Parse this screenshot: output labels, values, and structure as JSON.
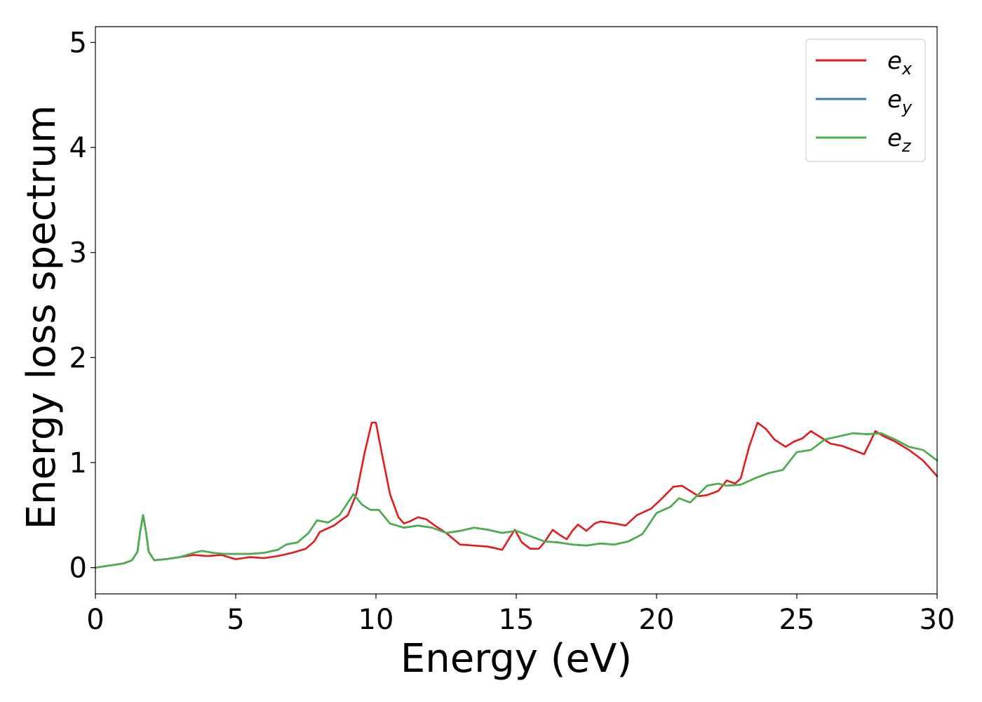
{
  "chart_data": {
    "type": "line",
    "xlabel": "Energy (eV)",
    "ylabel": "Energy loss spectrum",
    "xlim": [
      0,
      30
    ],
    "ylim": [
      -0.25,
      5.15
    ],
    "xticks": [
      0,
      5,
      10,
      15,
      20,
      25,
      30
    ],
    "xtick_labels": [
      "0",
      "5",
      "10",
      "15",
      "20",
      "25",
      "30"
    ],
    "yticks": [
      0,
      1,
      2,
      3,
      4,
      5
    ],
    "ytick_labels": [
      "0",
      "1",
      "2",
      "3",
      "4",
      "5"
    ],
    "grid": false,
    "legend_position": "top-right",
    "series": [
      {
        "name": "e_x",
        "label_base": "e",
        "label_sub": "x",
        "color": "#e41a1c",
        "points": [
          [
            0,
            0
          ],
          [
            0.5,
            0.02
          ],
          [
            1.0,
            0.04
          ],
          [
            1.3,
            0.07
          ],
          [
            1.5,
            0.15
          ],
          [
            1.6,
            0.35
          ],
          [
            1.7,
            0.5
          ],
          [
            1.8,
            0.35
          ],
          [
            1.9,
            0.15
          ],
          [
            2.1,
            0.07
          ],
          [
            2.5,
            0.08
          ],
          [
            3.0,
            0.1
          ],
          [
            3.5,
            0.12
          ],
          [
            4.0,
            0.11
          ],
          [
            4.5,
            0.12
          ],
          [
            5.0,
            0.08
          ],
          [
            5.5,
            0.1
          ],
          [
            6.0,
            0.09
          ],
          [
            6.5,
            0.11
          ],
          [
            7.0,
            0.14
          ],
          [
            7.5,
            0.18
          ],
          [
            7.8,
            0.25
          ],
          [
            8.0,
            0.34
          ],
          [
            8.5,
            0.4
          ],
          [
            8.8,
            0.46
          ],
          [
            9.0,
            0.5
          ],
          [
            9.3,
            0.7
          ],
          [
            9.6,
            1.1
          ],
          [
            9.85,
            1.38
          ],
          [
            10.0,
            1.38
          ],
          [
            10.2,
            1.1
          ],
          [
            10.5,
            0.7
          ],
          [
            10.8,
            0.48
          ],
          [
            11.0,
            0.42
          ],
          [
            11.2,
            0.44
          ],
          [
            11.5,
            0.48
          ],
          [
            11.8,
            0.46
          ],
          [
            12.1,
            0.4
          ],
          [
            12.5,
            0.33
          ],
          [
            13.0,
            0.22
          ],
          [
            13.5,
            0.21
          ],
          [
            14.0,
            0.2
          ],
          [
            14.5,
            0.17
          ],
          [
            14.8,
            0.3
          ],
          [
            14.95,
            0.36
          ],
          [
            15.2,
            0.24
          ],
          [
            15.5,
            0.18
          ],
          [
            15.8,
            0.18
          ],
          [
            16.0,
            0.24
          ],
          [
            16.3,
            0.36
          ],
          [
            16.5,
            0.32
          ],
          [
            16.8,
            0.27
          ],
          [
            17.0,
            0.35
          ],
          [
            17.2,
            0.41
          ],
          [
            17.5,
            0.35
          ],
          [
            17.8,
            0.42
          ],
          [
            18.0,
            0.44
          ],
          [
            18.5,
            0.42
          ],
          [
            18.9,
            0.4
          ],
          [
            19.3,
            0.5
          ],
          [
            19.8,
            0.56
          ],
          [
            20.2,
            0.66
          ],
          [
            20.6,
            0.77
          ],
          [
            20.9,
            0.78
          ],
          [
            21.2,
            0.73
          ],
          [
            21.5,
            0.68
          ],
          [
            21.8,
            0.69
          ],
          [
            22.2,
            0.73
          ],
          [
            22.5,
            0.83
          ],
          [
            22.8,
            0.8
          ],
          [
            23.0,
            0.85
          ],
          [
            23.3,
            1.15
          ],
          [
            23.6,
            1.38
          ],
          [
            23.9,
            1.32
          ],
          [
            24.2,
            1.22
          ],
          [
            24.6,
            1.15
          ],
          [
            24.9,
            1.2
          ],
          [
            25.2,
            1.23
          ],
          [
            25.5,
            1.3
          ],
          [
            25.8,
            1.25
          ],
          [
            26.2,
            1.18
          ],
          [
            26.6,
            1.16
          ],
          [
            27.0,
            1.12
          ],
          [
            27.4,
            1.08
          ],
          [
            27.8,
            1.3
          ],
          [
            28.1,
            1.25
          ],
          [
            28.5,
            1.2
          ],
          [
            29.0,
            1.12
          ],
          [
            29.5,
            1.02
          ],
          [
            30.0,
            0.87
          ]
        ]
      },
      {
        "name": "e_y",
        "label_base": "e",
        "label_sub": "y",
        "color": "#377eb8",
        "points": [
          [
            0,
            0
          ],
          [
            0.5,
            0.02
          ],
          [
            1.0,
            0.04
          ],
          [
            1.3,
            0.07
          ],
          [
            1.5,
            0.15
          ],
          [
            1.6,
            0.35
          ],
          [
            1.7,
            0.5
          ],
          [
            1.8,
            0.35
          ],
          [
            1.9,
            0.15
          ],
          [
            2.1,
            0.07
          ],
          [
            2.5,
            0.08
          ],
          [
            3.0,
            0.1
          ],
          [
            3.5,
            0.14
          ],
          [
            3.8,
            0.16
          ],
          [
            4.2,
            0.14
          ],
          [
            4.6,
            0.13
          ],
          [
            5.0,
            0.13
          ],
          [
            5.5,
            0.13
          ],
          [
            6.0,
            0.14
          ],
          [
            6.5,
            0.17
          ],
          [
            6.8,
            0.22
          ],
          [
            7.2,
            0.24
          ],
          [
            7.6,
            0.33
          ],
          [
            7.9,
            0.45
          ],
          [
            8.3,
            0.43
          ],
          [
            8.7,
            0.5
          ],
          [
            9.0,
            0.62
          ],
          [
            9.2,
            0.7
          ],
          [
            9.5,
            0.6
          ],
          [
            9.8,
            0.55
          ],
          [
            10.1,
            0.55
          ],
          [
            10.5,
            0.42
          ],
          [
            11.0,
            0.38
          ],
          [
            11.5,
            0.4
          ],
          [
            12.0,
            0.38
          ],
          [
            12.5,
            0.33
          ],
          [
            13.0,
            0.35
          ],
          [
            13.5,
            0.38
          ],
          [
            14.0,
            0.36
          ],
          [
            14.5,
            0.33
          ],
          [
            15.0,
            0.35
          ],
          [
            15.5,
            0.3
          ],
          [
            16.0,
            0.25
          ],
          [
            16.5,
            0.24
          ],
          [
            17.0,
            0.22
          ],
          [
            17.5,
            0.21
          ],
          [
            18.0,
            0.23
          ],
          [
            18.5,
            0.22
          ],
          [
            19.0,
            0.25
          ],
          [
            19.5,
            0.32
          ],
          [
            20.0,
            0.52
          ],
          [
            20.5,
            0.58
          ],
          [
            20.8,
            0.66
          ],
          [
            21.2,
            0.62
          ],
          [
            21.5,
            0.7
          ],
          [
            21.8,
            0.78
          ],
          [
            22.2,
            0.8
          ],
          [
            22.5,
            0.78
          ],
          [
            23.0,
            0.79
          ],
          [
            23.5,
            0.85
          ],
          [
            24.0,
            0.9
          ],
          [
            24.5,
            0.93
          ],
          [
            25.0,
            1.1
          ],
          [
            25.5,
            1.12
          ],
          [
            26.0,
            1.22
          ],
          [
            26.5,
            1.25
          ],
          [
            27.0,
            1.28
          ],
          [
            27.5,
            1.27
          ],
          [
            28.0,
            1.28
          ],
          [
            28.5,
            1.22
          ],
          [
            29.0,
            1.15
          ],
          [
            29.5,
            1.12
          ],
          [
            30.0,
            1.02
          ]
        ]
      },
      {
        "name": "e_z",
        "label_base": "e",
        "label_sub": "z",
        "color": "#4daf4a",
        "points": [
          [
            0,
            0
          ],
          [
            0.5,
            0.02
          ],
          [
            1.0,
            0.04
          ],
          [
            1.3,
            0.07
          ],
          [
            1.5,
            0.15
          ],
          [
            1.6,
            0.35
          ],
          [
            1.7,
            0.5
          ],
          [
            1.8,
            0.35
          ],
          [
            1.9,
            0.15
          ],
          [
            2.1,
            0.07
          ],
          [
            2.5,
            0.08
          ],
          [
            3.0,
            0.1
          ],
          [
            3.5,
            0.14
          ],
          [
            3.8,
            0.16
          ],
          [
            4.2,
            0.14
          ],
          [
            4.6,
            0.13
          ],
          [
            5.0,
            0.13
          ],
          [
            5.5,
            0.13
          ],
          [
            6.0,
            0.14
          ],
          [
            6.5,
            0.17
          ],
          [
            6.8,
            0.22
          ],
          [
            7.2,
            0.24
          ],
          [
            7.6,
            0.33
          ],
          [
            7.9,
            0.45
          ],
          [
            8.3,
            0.43
          ],
          [
            8.7,
            0.5
          ],
          [
            9.0,
            0.62
          ],
          [
            9.2,
            0.7
          ],
          [
            9.5,
            0.6
          ],
          [
            9.8,
            0.55
          ],
          [
            10.1,
            0.55
          ],
          [
            10.5,
            0.42
          ],
          [
            11.0,
            0.38
          ],
          [
            11.5,
            0.4
          ],
          [
            12.0,
            0.38
          ],
          [
            12.5,
            0.33
          ],
          [
            13.0,
            0.35
          ],
          [
            13.5,
            0.38
          ],
          [
            14.0,
            0.36
          ],
          [
            14.5,
            0.33
          ],
          [
            15.0,
            0.35
          ],
          [
            15.5,
            0.3
          ],
          [
            16.0,
            0.25
          ],
          [
            16.5,
            0.24
          ],
          [
            17.0,
            0.22
          ],
          [
            17.5,
            0.21
          ],
          [
            18.0,
            0.23
          ],
          [
            18.5,
            0.22
          ],
          [
            19.0,
            0.25
          ],
          [
            19.5,
            0.32
          ],
          [
            20.0,
            0.52
          ],
          [
            20.5,
            0.58
          ],
          [
            20.8,
            0.66
          ],
          [
            21.2,
            0.62
          ],
          [
            21.5,
            0.7
          ],
          [
            21.8,
            0.78
          ],
          [
            22.2,
            0.8
          ],
          [
            22.5,
            0.78
          ],
          [
            23.0,
            0.79
          ],
          [
            23.5,
            0.85
          ],
          [
            24.0,
            0.9
          ],
          [
            24.5,
            0.93
          ],
          [
            25.0,
            1.1
          ],
          [
            25.5,
            1.12
          ],
          [
            26.0,
            1.22
          ],
          [
            26.5,
            1.25
          ],
          [
            27.0,
            1.28
          ],
          [
            27.5,
            1.27
          ],
          [
            28.0,
            1.28
          ],
          [
            28.5,
            1.22
          ],
          [
            29.0,
            1.15
          ],
          [
            29.5,
            1.12
          ],
          [
            30.0,
            1.02
          ]
        ]
      }
    ]
  }
}
